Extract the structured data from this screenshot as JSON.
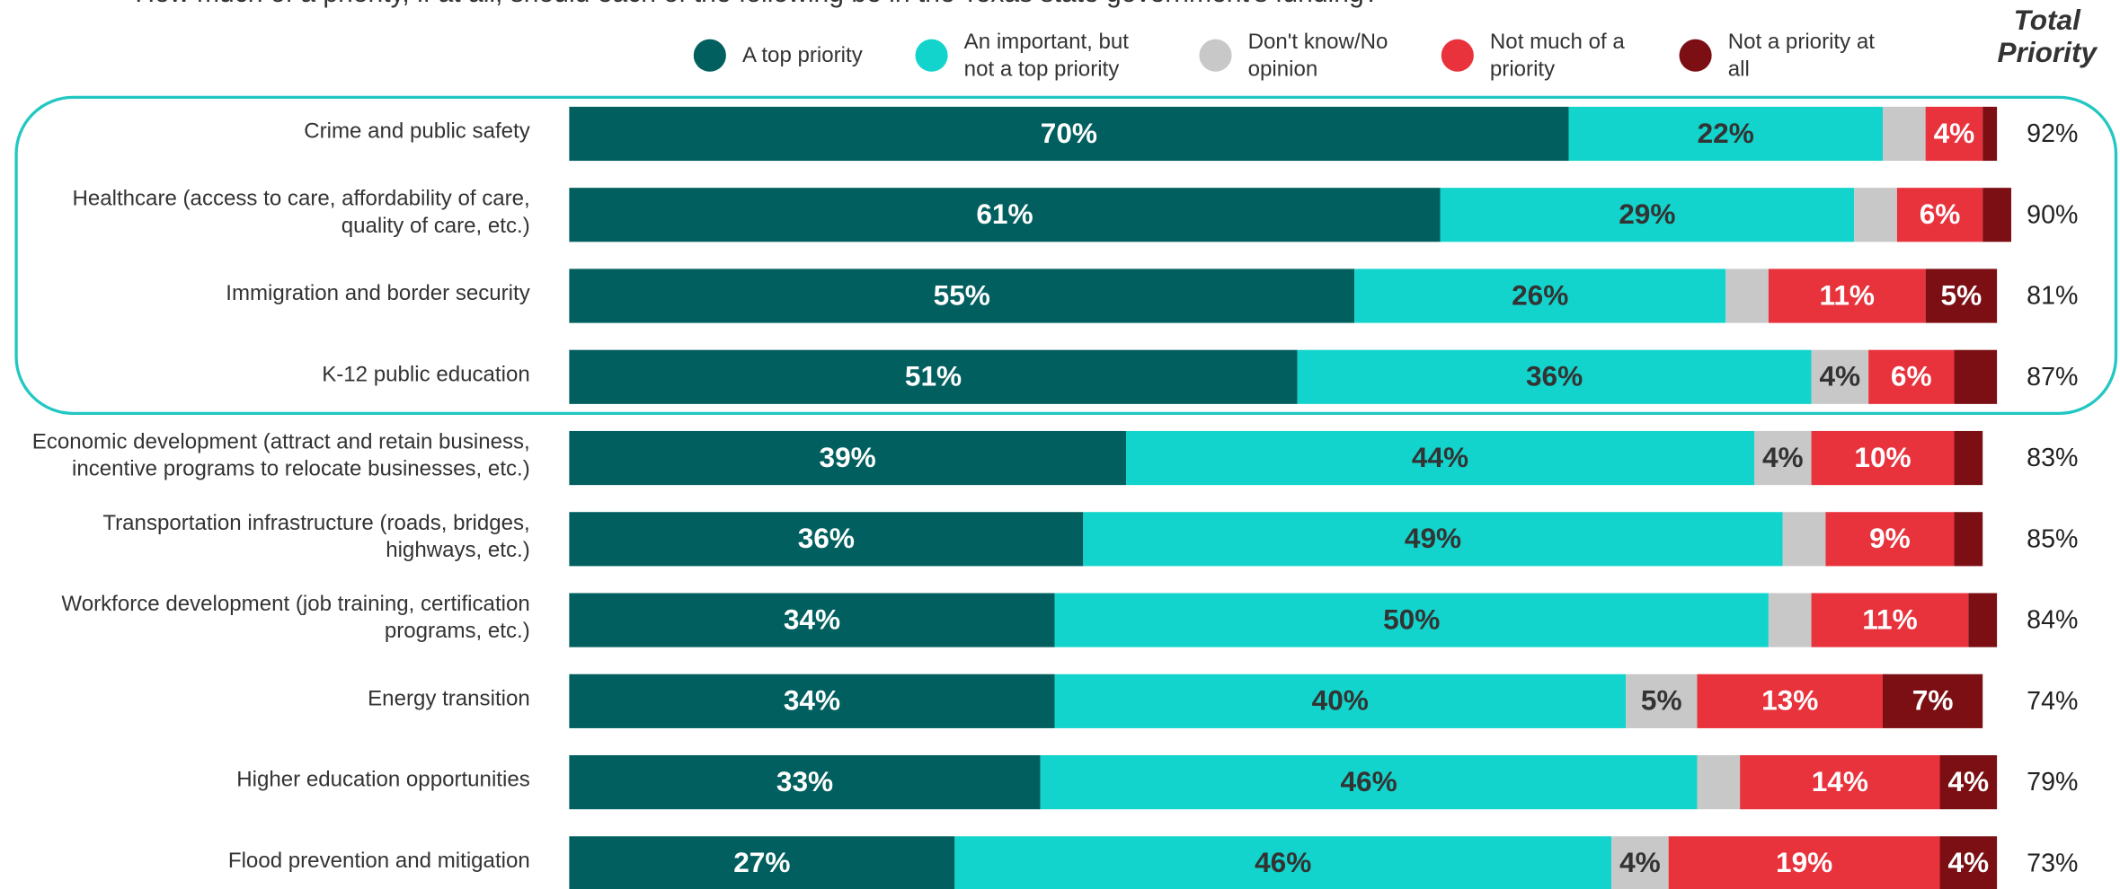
{
  "chart_data": {
    "type": "stacked_bar_horizontal",
    "subtitle": "How much of a priority, if at all, should each of the following be in the Texas state government's funding?",
    "categories": [
      "Crime and public safety",
      "Healthcare (access to care, affordability of care,\nquality of care, etc.)",
      "Immigration and border security",
      "K-12 public education",
      "Economic development (attract and retain business,\nincentive programs to relocate businesses, etc.)",
      "Transportation infrastructure (roads, bridges,\nhighways, etc.)",
      "Workforce development (job training, certification\nprograms, etc.)",
      "Energy transition",
      "Higher education opportunities",
      "Flood prevention and mitigation"
    ],
    "xlim": [
      0,
      100
    ],
    "series": [
      {
        "name": "A top priority",
        "color": "#025f5f",
        "label_color": "#ffffff",
        "values": [
          70,
          61,
          55,
          51,
          39,
          36,
          34,
          34,
          33,
          27
        ],
        "value_labels": [
          "70%",
          "61%",
          "55%",
          "51%",
          "39%",
          "36%",
          "34%",
          "34%",
          "33%",
          "27%"
        ]
      },
      {
        "name": "An important, but\nnot a top priority",
        "color": "#12d4cc",
        "label_color": "#333333",
        "values": [
          22,
          29,
          26,
          36,
          44,
          49,
          50,
          40,
          46,
          46
        ],
        "value_labels": [
          "22%",
          "29%",
          "26%",
          "36%",
          "44%",
          "49%",
          "50%",
          "40%",
          "46%",
          "46%"
        ]
      },
      {
        "name": "Don't know/No\nopinion",
        "color": "#c8c8c8",
        "label_color": "#333333",
        "values": [
          3,
          3,
          3,
          4,
          4,
          3,
          3,
          5,
          3,
          4
        ],
        "value_labels": [
          null,
          null,
          null,
          "4%",
          "4%",
          null,
          null,
          "5%",
          null,
          "4%"
        ]
      },
      {
        "name": "Not much of a\npriority",
        "color": "#e8323c",
        "label_color": "#ffffff",
        "values": [
          4,
          6,
          11,
          6,
          10,
          9,
          11,
          13,
          14,
          19
        ],
        "value_labels": [
          "4%",
          "6%",
          "11%",
          "6%",
          "10%",
          "9%",
          "11%",
          "13%",
          "14%",
          "19%"
        ]
      },
      {
        "name": "Not a priority at\nall",
        "color": "#7b0f14",
        "label_color": "#ffffff",
        "values": [
          1,
          2,
          5,
          3,
          2,
          2,
          2,
          7,
          4,
          4
        ],
        "value_labels": [
          null,
          null,
          "5%",
          null,
          null,
          null,
          null,
          "7%",
          "4%",
          "4%"
        ]
      }
    ],
    "totals": {
      "header": "Total\nPriority",
      "values": [
        92,
        90,
        81,
        87,
        83,
        85,
        84,
        74,
        79,
        73
      ],
      "value_labels": [
        "92%",
        "90%",
        "81%",
        "87%",
        "83%",
        "85%",
        "84%",
        "74%",
        "79%",
        "73%"
      ]
    },
    "highlight_color": "#22c7c3"
  }
}
